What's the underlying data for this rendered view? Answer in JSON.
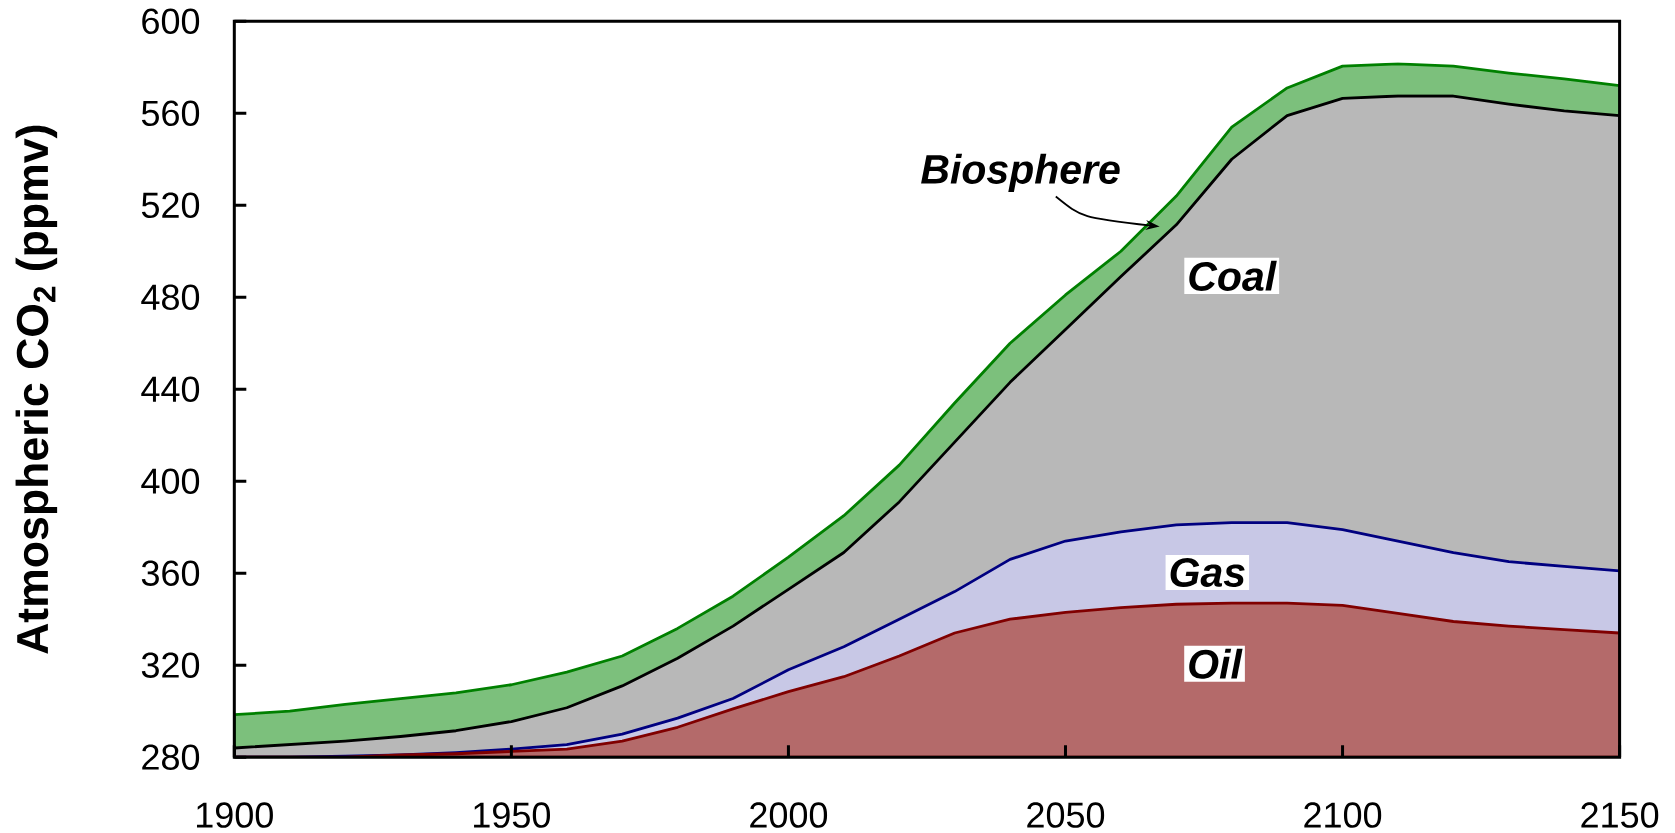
{
  "chart_data": {
    "type": "area",
    "ylabel": "Atmospheric CO$_{2}$ (ppmv)",
    "x": [
      1900,
      1910,
      1920,
      1930,
      1940,
      1950,
      1960,
      1970,
      1980,
      1990,
      2000,
      2010,
      2020,
      2030,
      2040,
      2050,
      2060,
      2070,
      2080,
      2090,
      2100,
      2110,
      2120,
      2130,
      2140,
      2150
    ],
    "xlim": [
      1900,
      2150
    ],
    "xticks": [
      1900,
      1950,
      2000,
      2050,
      2100,
      2150
    ],
    "ylim": [
      280,
      600
    ],
    "yticks": [
      280,
      320,
      360,
      400,
      440,
      480,
      520,
      560,
      600
    ],
    "series": [
      {
        "name": "Biosphere",
        "color": "#7cc07c",
        "values": [
          298.5,
          300,
          303,
          305.5,
          308,
          311.5,
          317,
          324,
          336,
          350,
          367,
          385,
          407,
          434,
          460,
          481,
          500,
          524,
          554,
          571,
          580.5,
          581.5,
          580.5,
          577.5,
          575,
          572
        ]
      },
      {
        "name": "Coal",
        "color": "#b8b8b8",
        "values": [
          284,
          285.5,
          287,
          289,
          291.5,
          295.5,
          301.5,
          311,
          323,
          337,
          353,
          369,
          391,
          417,
          443,
          466,
          489,
          511.5,
          540,
          559,
          566.5,
          567.5,
          567.5,
          564,
          561,
          559
        ]
      },
      {
        "name": "Gas",
        "color": "#c8c8e6",
        "values": [
          280,
          280,
          280.5,
          281,
          282,
          283.5,
          285.5,
          290,
          297,
          305.5,
          318,
          328,
          340,
          352,
          366,
          374,
          378,
          381,
          382,
          382,
          379,
          374,
          369,
          365,
          363,
          361
        ]
      },
      {
        "name": "Oil",
        "color": "#b46a6a",
        "values": [
          280,
          280,
          280,
          281,
          281.5,
          282.5,
          283.5,
          287,
          293,
          301,
          308.5,
          315,
          324,
          334,
          340,
          343,
          345,
          346.5,
          347,
          347,
          346,
          342.5,
          339,
          337,
          335.5,
          334
        ]
      }
    ]
  }
}
